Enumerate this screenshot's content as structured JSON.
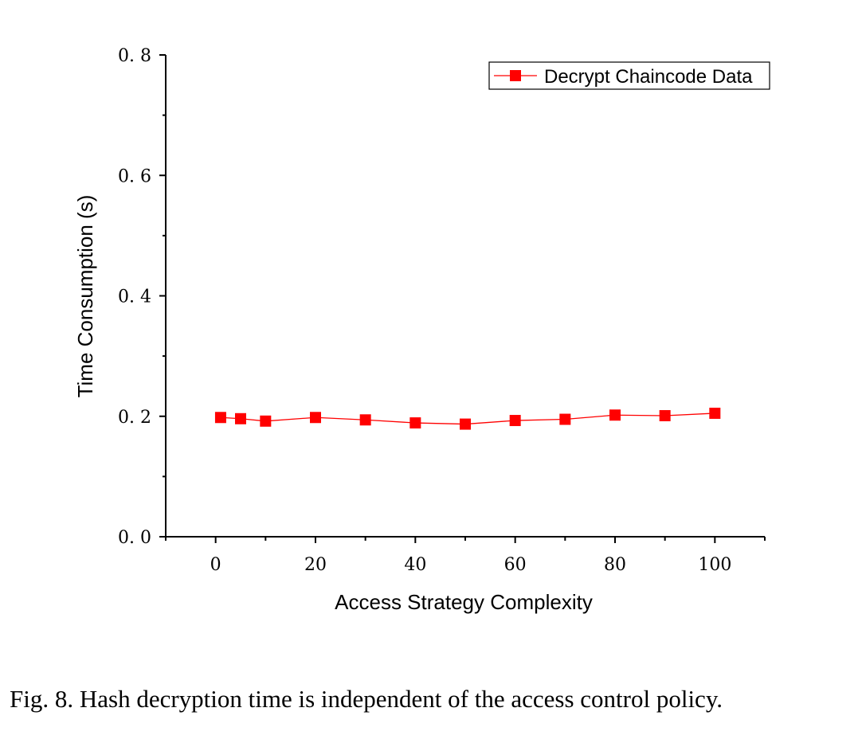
{
  "chart_data": {
    "type": "line",
    "xlabel": "Access Strategy Complexity",
    "ylabel": "Time Consumption (s)",
    "xlim": [
      -10,
      110
    ],
    "ylim": [
      0.0,
      0.8
    ],
    "x_ticks": [
      "0",
      "20",
      "40",
      "60",
      "80",
      "100"
    ],
    "y_ticks": [
      "0.0",
      "0.2",
      "0.4",
      "0.6",
      "0.8"
    ],
    "legend_position": "top-right",
    "grid": false,
    "series": [
      {
        "name": "Decrypt Chaincode Data",
        "color": "#ff0000",
        "marker": "square",
        "x": [
          1,
          5,
          10,
          20,
          30,
          40,
          50,
          60,
          70,
          80,
          90,
          100
        ],
        "y": [
          0.198,
          0.196,
          0.192,
          0.198,
          0.194,
          0.189,
          0.187,
          0.193,
          0.195,
          0.202,
          0.201,
          0.205
        ]
      }
    ]
  },
  "caption": "Fig. 8.  Hash decryption time is independent of the access control policy."
}
